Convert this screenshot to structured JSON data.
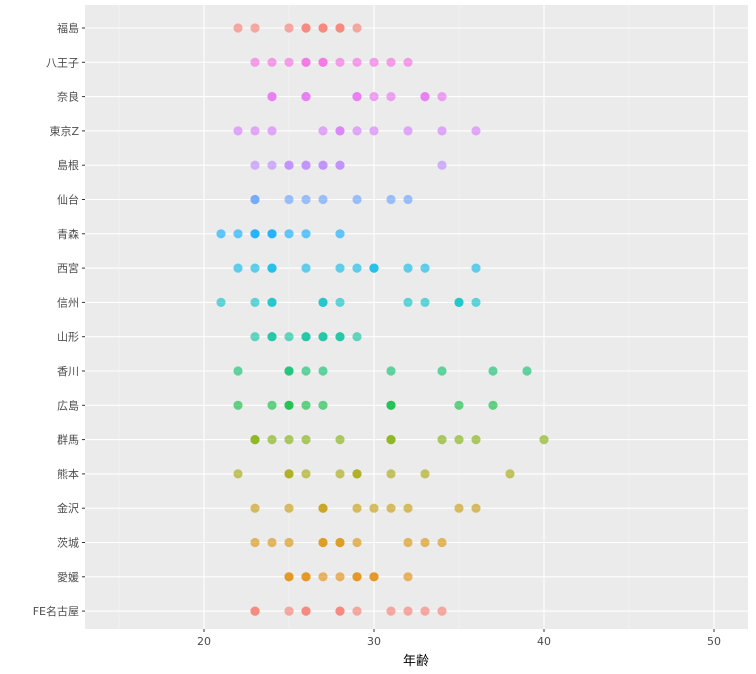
{
  "chart_data": {
    "type": "scatter",
    "title": "",
    "xlabel": "年齢",
    "ylabel": "",
    "xlim": [
      13,
      52
    ],
    "x_ticks": [
      20,
      30,
      40,
      50
    ],
    "x_tick_labels": [
      "20",
      "30",
      "40",
      "50"
    ],
    "grid": true,
    "legend": "none",
    "categories": [
      "福島",
      "八王子",
      "奈良",
      "東京Z",
      "島根",
      "仙台",
      "青森",
      "西宮",
      "信州",
      "山形",
      "香川",
      "広島",
      "群馬",
      "熊本",
      "金沢",
      "茨城",
      "愛媛",
      "FE名古屋"
    ],
    "series": [
      {
        "category": "福島",
        "color": "#F8766D",
        "x": [
          22,
          23,
          25,
          26,
          26,
          27,
          27,
          28,
          28,
          29
        ]
      },
      {
        "category": "八王子",
        "color": "#F564E3",
        "x": [
          23,
          24,
          25,
          26,
          26,
          27,
          27,
          28,
          29,
          30,
          31,
          32
        ]
      },
      {
        "category": "奈良",
        "color": "#E76BF3",
        "x": [
          24,
          24,
          26,
          26,
          29,
          29,
          30,
          31,
          33,
          33,
          34
        ]
      },
      {
        "category": "東京Z",
        "color": "#D575FE",
        "x": [
          22,
          23,
          24,
          27,
          28,
          28,
          29,
          30,
          32,
          34,
          36
        ]
      },
      {
        "category": "島根",
        "color": "#B983FF",
        "x": [
          23,
          24,
          25,
          25,
          26,
          26,
          27,
          27,
          28,
          28,
          34
        ]
      },
      {
        "category": "仙台",
        "color": "#619CFF",
        "x": [
          23,
          23,
          25,
          26,
          27,
          29,
          31,
          32
        ]
      },
      {
        "category": "青森",
        "color": "#00A9FF",
        "x": [
          21,
          22,
          23,
          23,
          24,
          24,
          25,
          26,
          28
        ]
      },
      {
        "category": "西宮",
        "color": "#00B8E7",
        "x": [
          22,
          23,
          24,
          24,
          26,
          28,
          29,
          30,
          30,
          32,
          33,
          36
        ]
      },
      {
        "category": "信州",
        "color": "#00BFC4",
        "x": [
          21,
          23,
          24,
          24,
          27,
          27,
          28,
          32,
          33,
          35,
          35,
          36
        ]
      },
      {
        "category": "山形",
        "color": "#00C19A",
        "x": [
          23,
          24,
          24,
          25,
          26,
          26,
          27,
          27,
          28,
          28,
          29
        ]
      },
      {
        "category": "香川",
        "color": "#00BE67",
        "x": [
          22,
          25,
          25,
          26,
          27,
          31,
          34,
          37,
          39
        ]
      },
      {
        "category": "広島",
        "color": "#00BA38",
        "x": [
          22,
          24,
          25,
          25,
          26,
          27,
          31,
          31,
          35,
          37
        ]
      },
      {
        "category": "群馬",
        "color": "#7CAE00",
        "x": [
          23,
          23,
          24,
          25,
          26,
          28,
          31,
          31,
          34,
          35,
          36,
          40
        ]
      },
      {
        "category": "熊本",
        "color": "#A3A500",
        "x": [
          22,
          25,
          25,
          26,
          28,
          29,
          29,
          31,
          33,
          38
        ]
      },
      {
        "category": "金沢",
        "color": "#C49A00",
        "x": [
          23,
          25,
          27,
          27,
          29,
          30,
          31,
          32,
          35,
          36
        ]
      },
      {
        "category": "茨城",
        "color": "#D89000",
        "x": [
          23,
          24,
          25,
          27,
          27,
          28,
          28,
          29,
          32,
          33,
          34
        ]
      },
      {
        "category": "愛媛",
        "color": "#E58700",
        "x": [
          25,
          25,
          26,
          26,
          27,
          28,
          29,
          29,
          30,
          30,
          32
        ]
      },
      {
        "category": "FE名古屋",
        "color": "#F8766D",
        "x": [
          23,
          23,
          25,
          26,
          26,
          28,
          28,
          29,
          31,
          32,
          33,
          34
        ]
      }
    ]
  }
}
